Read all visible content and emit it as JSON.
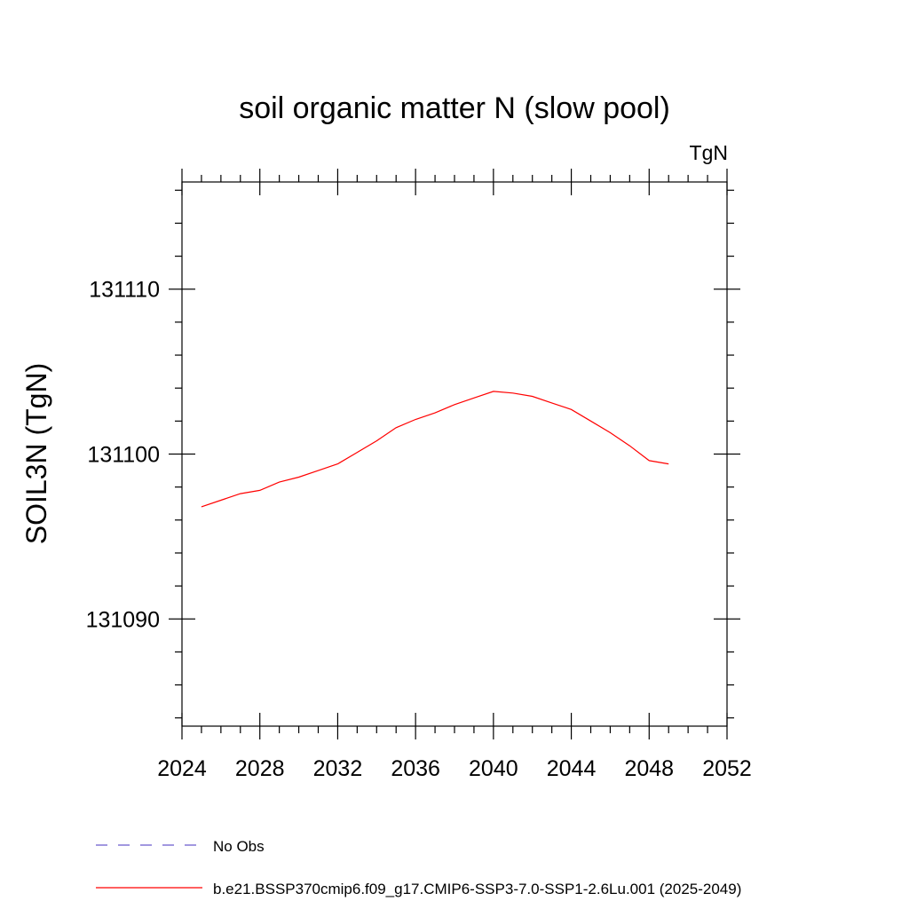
{
  "chart_data": {
    "type": "line",
    "title": "soil organic matter N (slow pool)",
    "units": "TgN",
    "ylabel": "SOIL3N  (TgN)",
    "xlabel": "",
    "xlim": [
      2024,
      2052
    ],
    "ylim": [
      131083.5,
      131116.5
    ],
    "x_major_ticks": [
      2024,
      2028,
      2032,
      2036,
      2040,
      2044,
      2048,
      2052
    ],
    "x_minor_step": 1,
    "y_major_ticks": [
      131090,
      131100,
      131110
    ],
    "y_minor_step": 2,
    "grid": false,
    "series": [
      {
        "name": "No Obs",
        "color": "#6a5acd",
        "dash": true,
        "x": [],
        "values": []
      },
      {
        "name": "b.e21.BSSP370cmip6.f09_g17.CMIP6-SSP3-7.0-SSP1-2.6Lu.001 (2025-2049)",
        "color": "#ff0000",
        "dash": false,
        "x": [
          2025,
          2026,
          2027,
          2028,
          2029,
          2030,
          2031,
          2032,
          2033,
          2034,
          2035,
          2036,
          2037,
          2038,
          2039,
          2040,
          2041,
          2042,
          2043,
          2044,
          2045,
          2046,
          2047,
          2048,
          2049
        ],
        "values": [
          131096.8,
          131097.2,
          131097.6,
          131097.8,
          131098.3,
          131098.6,
          131099.0,
          131099.4,
          131100.1,
          131100.8,
          131101.6,
          131102.1,
          131102.5,
          131103.0,
          131103.4,
          131103.8,
          131103.7,
          131103.5,
          131103.1,
          131102.7,
          131102.0,
          131101.3,
          131100.5,
          131099.6,
          131099.4
        ]
      }
    ]
  }
}
